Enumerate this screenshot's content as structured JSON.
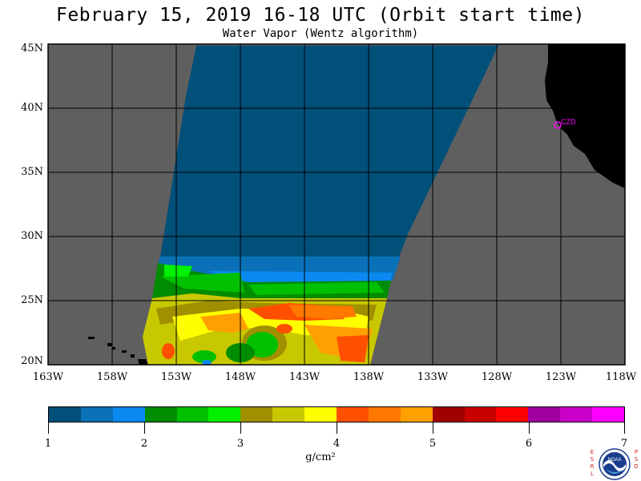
{
  "title": "February 15, 2019  16-18 UTC  (Orbit start time)",
  "subtitle": "Water Vapor (Wentz algorithm)",
  "lat_labels": [
    "45N",
    "40N",
    "35N",
    "30N",
    "25N",
    "20N"
  ],
  "lon_labels": [
    "163W",
    "158W",
    "153W",
    "148W",
    "143W",
    "138W",
    "133W",
    "128W",
    "123W",
    "118W"
  ],
  "station_label": "CZD",
  "colorbar": {
    "colors": [
      "#00507a",
      "#0a70b8",
      "#0a8af0",
      "#008c00",
      "#00c000",
      "#00f000",
      "#a09000",
      "#c8c800",
      "#ffff00",
      "#ff5000",
      "#ff7800",
      "#ffa000",
      "#a00000",
      "#c80000",
      "#ff0000",
      "#a000a0",
      "#c800c8",
      "#ff00ff"
    ],
    "tick_labels": [
      "1",
      "2",
      "3",
      "4",
      "5",
      "6",
      "7"
    ],
    "units": "g/cm²"
  },
  "logo": {
    "left_letters": [
      "E",
      "S",
      "R",
      "L"
    ],
    "right_letters": [
      "P",
      "S",
      "D"
    ],
    "name": "NOAA"
  },
  "colors": {
    "nodata": "#5f5f5f",
    "land": "#000000",
    "marker": "#ff00ff"
  }
}
